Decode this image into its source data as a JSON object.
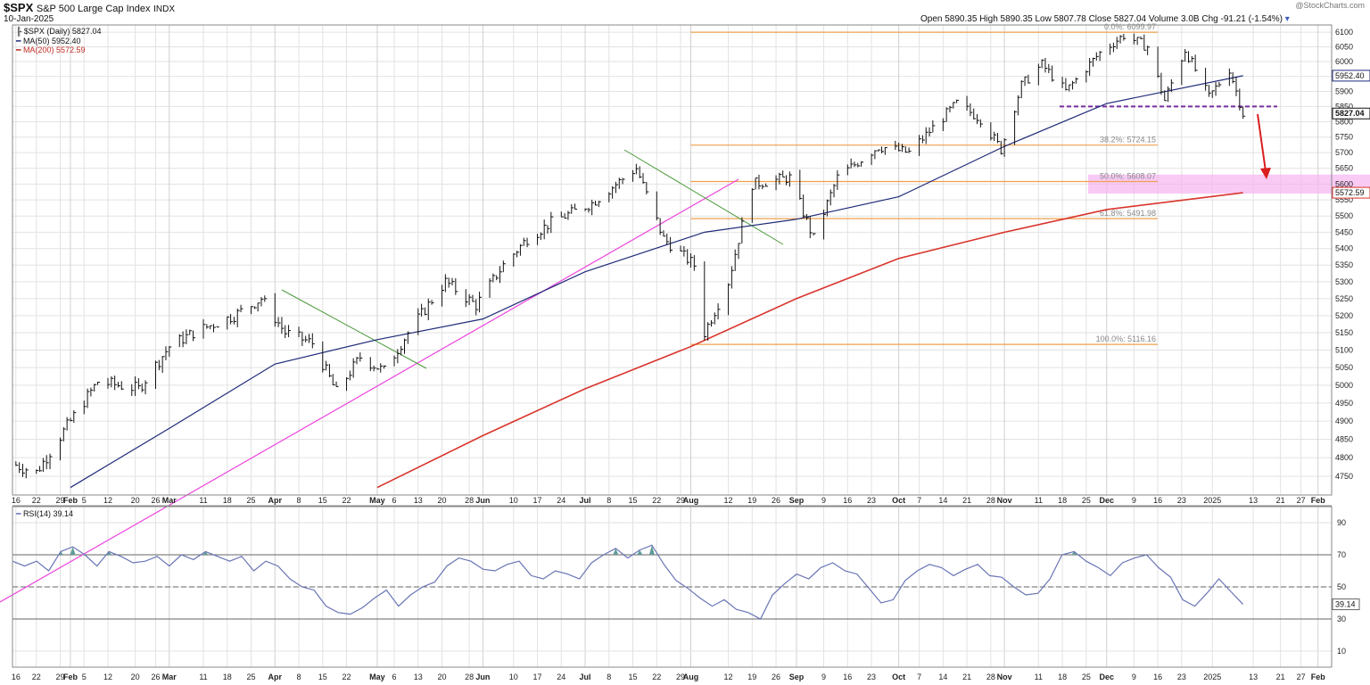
{
  "header": {
    "symbol": "$SPX",
    "name": "S&P 500 Large Cap Index",
    "exchange": "INDX",
    "date": "10-Jan-2025",
    "watermark": "@StockCharts.com",
    "open_label": "Open",
    "open": "5890.35",
    "high_label": "High",
    "high": "5890.35",
    "low_label": "Low",
    "low": "5807.78",
    "close_label": "Close",
    "close": "5827.04",
    "volume_label": "Volume",
    "volume": "3.0B",
    "chg_label": "Chg",
    "chg": "-91.21 (-1.54%)"
  },
  "legend": {
    "series": "$SPX (Daily) 5827.04",
    "ma50": "MA(50) 5952.40",
    "ma200": "MA(200) 5572.59",
    "rsi": "RSI(14) 39.14"
  },
  "colors": {
    "price": "#111111",
    "ma50": "#1f2a78",
    "ma200": "#d9342b",
    "fib": "#f0a04b",
    "trend_pink": "#ee44dd",
    "trend_green": "#4a9a3a",
    "support": "#7a2e9e",
    "arrow": "#d91e1e",
    "zone": "#f5b3f0",
    "rsi_line": "#6a75b5",
    "rsi_fill": "#5f9c97",
    "grid": "#e2e2e2"
  },
  "chart_data": [
    {
      "type": "line",
      "title": "$SPX (Daily) 5827.04",
      "ylim": [
        4700,
        6125
      ],
      "yscale": "log",
      "y_ticks": [
        "4750",
        "4800",
        "4850",
        "4900",
        "4950",
        "5000",
        "5050",
        "5100",
        "5150",
        "5200",
        "5250",
        "5300",
        "5350",
        "5400",
        "5450",
        "5500",
        "5550",
        "5600",
        "5650",
        "5700",
        "5750",
        "5800",
        "5850",
        "5900",
        "5950",
        "6000",
        "6050",
        "6100"
      ],
      "x_ticks": [
        "16",
        "22",
        "29",
        "Feb",
        "5",
        "12",
        "20",
        "26",
        "Mar",
        "11",
        "18",
        "25",
        "Apr",
        "8",
        "15",
        "22",
        "May",
        "6",
        "13",
        "20",
        "28",
        "Jun",
        "10",
        "17",
        "24",
        "Jul",
        "8",
        "15",
        "22",
        "29",
        "Aug",
        "12",
        "19",
        "26",
        "Sep",
        "9",
        "16",
        "23",
        "Oct",
        "7",
        "14",
        "21",
        "28",
        "Nov",
        "11",
        "18",
        "25",
        "Dec",
        "9",
        "16",
        "23",
        "2025",
        "13",
        "21",
        "27",
        "Feb"
      ],
      "price_key_points": [
        {
          "date": "2024-01-16",
          "close": 4780
        },
        {
          "date": "2024-01-22",
          "close": 4760
        },
        {
          "date": "2024-02-01",
          "close": 4900
        },
        {
          "date": "2024-02-09",
          "close": 5010
        },
        {
          "date": "2024-02-21",
          "close": 4990
        },
        {
          "date": "2024-03-01",
          "close": 5110
        },
        {
          "date": "2024-03-08",
          "close": 5150
        },
        {
          "date": "2024-03-20",
          "close": 5200
        },
        {
          "date": "2024-03-28",
          "close": 5250
        },
        {
          "date": "2024-04-04",
          "close": 5150
        },
        {
          "date": "2024-04-12",
          "close": 5120
        },
        {
          "date": "2024-04-19",
          "close": 4980
        },
        {
          "date": "2024-04-26",
          "close": 5080
        },
        {
          "date": "2024-05-03",
          "close": 5040
        },
        {
          "date": "2024-05-10",
          "close": 5150
        },
        {
          "date": "2024-05-21",
          "close": 5300
        },
        {
          "date": "2024-05-30",
          "close": 5230
        },
        {
          "date": "2024-06-07",
          "close": 5350
        },
        {
          "date": "2024-06-14",
          "close": 5430
        },
        {
          "date": "2024-06-21",
          "close": 5480
        },
        {
          "date": "2024-07-03",
          "close": 5540
        },
        {
          "date": "2024-07-16",
          "close": 5650
        },
        {
          "date": "2024-07-24",
          "close": 5430
        },
        {
          "date": "2024-08-02",
          "close": 5350
        },
        {
          "date": "2024-08-05",
          "close": 5150
        },
        {
          "date": "2024-08-12",
          "close": 5300
        },
        {
          "date": "2024-08-19",
          "close": 5600
        },
        {
          "date": "2024-08-30",
          "close": 5620
        },
        {
          "date": "2024-09-06",
          "close": 5430
        },
        {
          "date": "2024-09-13",
          "close": 5620
        },
        {
          "date": "2024-09-25",
          "close": 5720
        },
        {
          "date": "2024-10-04",
          "close": 5700
        },
        {
          "date": "2024-10-18",
          "close": 5860
        },
        {
          "date": "2024-10-25",
          "close": 5810
        },
        {
          "date": "2024-10-31",
          "close": 5710
        },
        {
          "date": "2024-11-06",
          "close": 5920
        },
        {
          "date": "2024-11-12",
          "close": 5990
        },
        {
          "date": "2024-11-19",
          "close": 5900
        },
        {
          "date": "2024-11-29",
          "close": 6030
        },
        {
          "date": "2024-12-06",
          "close": 6090
        },
        {
          "date": "2024-12-13",
          "close": 6050
        },
        {
          "date": "2024-12-18",
          "close": 5870
        },
        {
          "date": "2024-12-24",
          "close": 6040
        },
        {
          "date": "2024-12-31",
          "close": 5880
        },
        {
          "date": "2025-01-06",
          "close": 5975
        },
        {
          "date": "2025-01-10",
          "close": 5827.04
        }
      ],
      "ma50_latest": 5952.4,
      "ma200_latest": 5572.59,
      "fibonacci": [
        {
          "label": "0.0%: 6099.97",
          "value": 6099.97
        },
        {
          "label": "38.2%: 5724.15",
          "value": 5724.15
        },
        {
          "label": "50.0%: 5608.07",
          "value": 5608.07
        },
        {
          "label": "61.8%: 5491.98",
          "value": 5491.98
        },
        {
          "label": "100.0%: 5116.16",
          "value": 5116.16
        }
      ],
      "support_level": 5850,
      "target_zone": [
        5570,
        5630
      ],
      "price_label": "5827.04",
      "ma50_label": "5952.40",
      "ma200_label": "5572.59"
    },
    {
      "type": "line",
      "title": "RSI(14) 39.14",
      "ylim": [
        0,
        100
      ],
      "y_ticks": [
        "10",
        "30",
        "50",
        "70",
        "90"
      ],
      "reference_lines": [
        30,
        50,
        70
      ],
      "values_key_points": [
        66,
        63,
        66,
        60,
        72,
        75,
        70,
        63,
        72,
        69,
        65,
        66,
        69,
        63,
        70,
        67,
        72,
        69,
        66,
        69,
        60,
        66,
        63,
        55,
        50,
        48,
        38,
        34,
        33,
        37,
        43,
        48,
        38,
        45,
        50,
        53,
        63,
        68,
        66,
        61,
        60,
        64,
        66,
        57,
        55,
        60,
        58,
        55,
        65,
        70,
        74,
        68,
        73,
        76,
        64,
        54,
        49,
        43,
        38,
        42,
        36,
        34,
        30,
        45,
        52,
        58,
        55,
        62,
        65,
        60,
        58,
        49,
        40,
        42,
        54,
        60,
        64,
        62,
        57,
        61,
        64,
        57,
        56,
        50,
        45,
        46,
        55,
        70,
        72,
        66,
        62,
        57,
        65,
        68,
        70,
        62,
        56,
        42,
        38,
        46,
        55,
        47,
        39.14
      ],
      "last_label": "39.14"
    }
  ]
}
